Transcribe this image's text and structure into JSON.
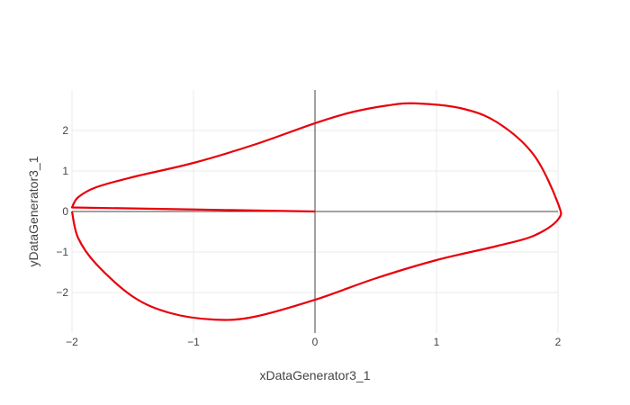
{
  "chart_data": {
    "type": "line",
    "title": "",
    "xlabel": "xDataGenerator3_1",
    "ylabel": "yDataGenerator3_1",
    "xlim": [
      -2.0,
      2.0
    ],
    "ylim": [
      -3.0,
      3.0
    ],
    "grid": true,
    "legend": "none",
    "xticks": [
      {
        "value": -2,
        "label": "−2"
      },
      {
        "value": -1,
        "label": "−1"
      },
      {
        "value": 0,
        "label": "0"
      },
      {
        "value": 1,
        "label": "1"
      },
      {
        "value": 2,
        "label": "2"
      }
    ],
    "yticks": [
      {
        "value": -2,
        "label": "−2"
      },
      {
        "value": -1,
        "label": "−1"
      },
      {
        "value": 0,
        "label": "0"
      },
      {
        "value": 1,
        "label": "1"
      },
      {
        "value": 2,
        "label": "2"
      }
    ],
    "series": [
      {
        "color": "#e8000b",
        "x": [
          0,
          -1,
          -2,
          -1.95,
          -1.8,
          -1.5,
          -1.0,
          -0.5,
          0,
          0.3,
          0.6,
          0.83,
          1.2,
          1.5,
          1.8,
          2.0,
          2.0,
          1.8,
          1.5,
          1.0,
          0.5,
          0,
          -0.5,
          -0.83,
          -1.2,
          -1.5,
          -1.8,
          -1.95,
          -2.0
        ],
        "y": [
          0,
          0.05,
          0.1,
          0.35,
          0.6,
          0.85,
          1.2,
          1.65,
          2.18,
          2.45,
          2.62,
          2.67,
          2.55,
          2.2,
          1.4,
          0.2,
          -0.2,
          -0.6,
          -0.85,
          -1.2,
          -1.65,
          -2.18,
          -2.6,
          -2.67,
          -2.5,
          -2.1,
          -1.3,
          -0.65,
          0.0
        ]
      }
    ]
  }
}
